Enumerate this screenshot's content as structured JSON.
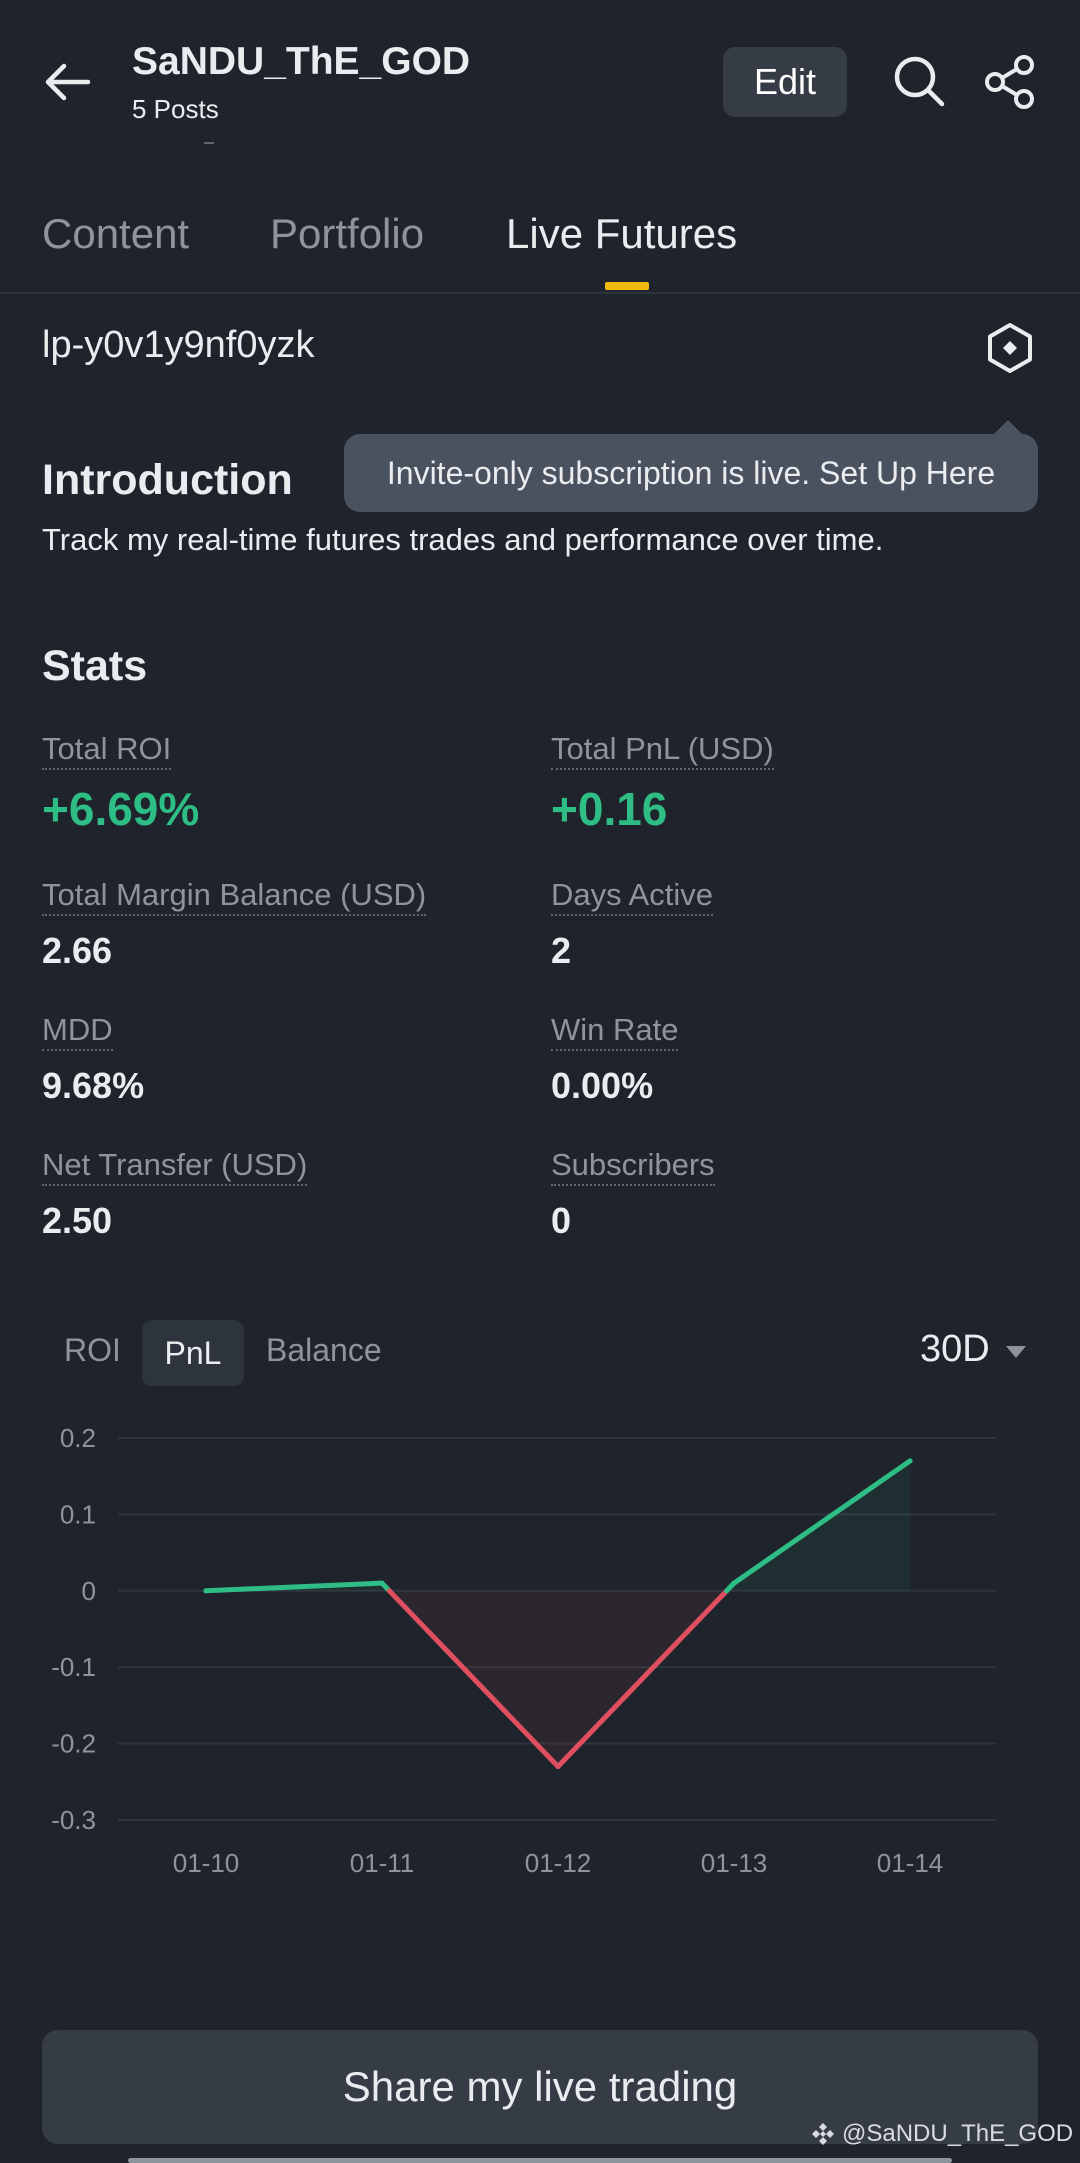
{
  "header": {
    "username": "SaNDU_ThE_GOD",
    "posts": "5 Posts",
    "edit_label": "Edit"
  },
  "tabs": [
    {
      "label": "Content",
      "active": false
    },
    {
      "label": "Portfolio",
      "active": false
    },
    {
      "label": "Live Futures",
      "active": true
    }
  ],
  "portfolio_id": "lp-y0v1y9nf0yzk",
  "tooltip": "Invite-only subscription is live. Set Up Here",
  "intro": {
    "title": "Introduction",
    "text": "Track my real-time futures trades and performance over time."
  },
  "stats": {
    "title": "Stats",
    "items": [
      {
        "label": "Total ROI",
        "value": "+6.69%"
      },
      {
        "label": "Total PnL (USD)",
        "value": "+0.16"
      },
      {
        "label": "Total Margin Balance (USD)",
        "value": "2.66"
      },
      {
        "label": "Days Active",
        "value": "2"
      },
      {
        "label": "MDD",
        "value": "9.68%"
      },
      {
        "label": "Win Rate",
        "value": "0.00%"
      },
      {
        "label": "Net Transfer (USD)",
        "value": "2.50"
      },
      {
        "label": "Subscribers",
        "value": "0"
      }
    ]
  },
  "chart_tabs": [
    {
      "label": "ROI",
      "active": false
    },
    {
      "label": "PnL",
      "active": true
    },
    {
      "label": "Balance",
      "active": false
    }
  ],
  "period": "30D",
  "colors": {
    "positive": "#2ebd85",
    "negative": "#e04f5f",
    "accent": "#f0b90b",
    "background": "#1f242c"
  },
  "chart_data": {
    "type": "line",
    "categories": [
      "01-10",
      "01-11",
      "01-12",
      "01-13",
      "01-14"
    ],
    "values": [
      0.0,
      0.01,
      -0.23,
      0.01,
      0.17
    ],
    "yticks": [
      "0.2",
      "0.1",
      "0",
      "-0.1",
      "-0.2",
      "-0.3"
    ],
    "ylim": [
      -0.3,
      0.2
    ],
    "grid": true
  },
  "cta": {
    "label": "Share my live trading"
  },
  "watermark": "@SaNDU_ThE_GOD"
}
